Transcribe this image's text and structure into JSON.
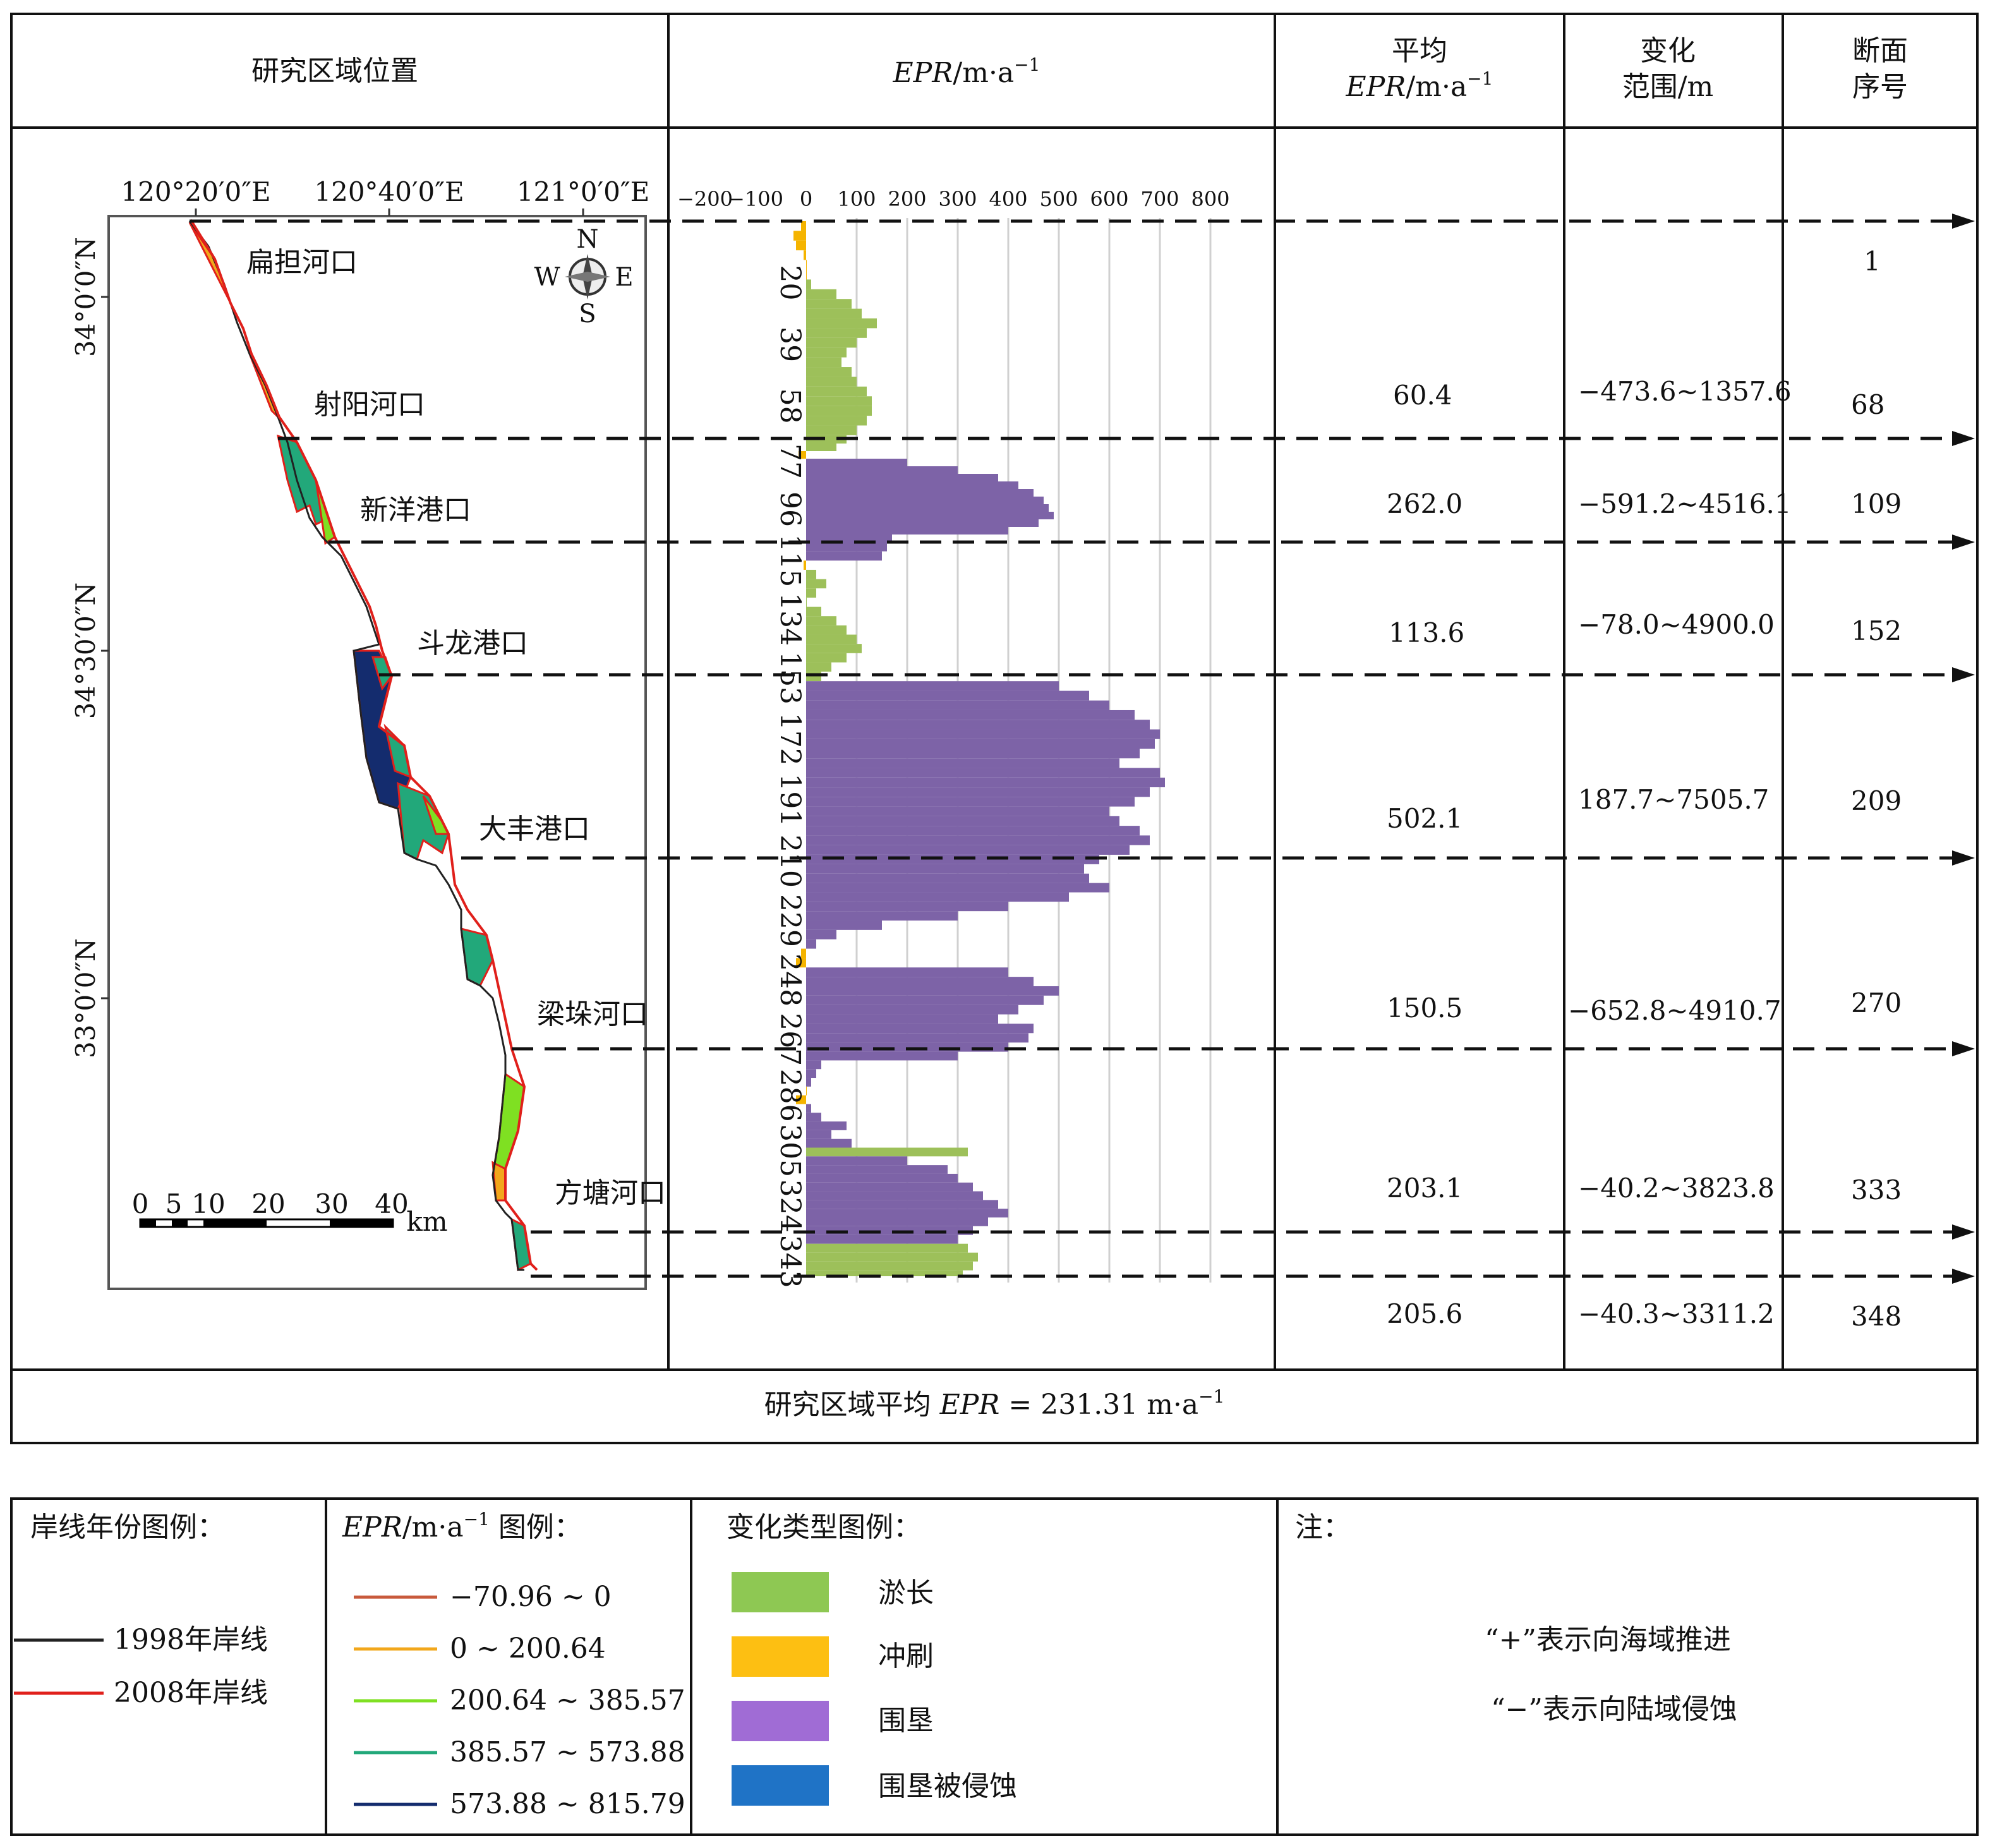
{
  "header": {
    "col1": "研究区域位置",
    "col2_italic": "EPR",
    "col2_unit": "/m·a",
    "col2_sup": "−1",
    "col3_line1": "平均",
    "col3_italic": "EPR",
    "col3_unit": "/m·a",
    "col3_sup": "−1",
    "col4_line1": "变化",
    "col4_line2": "范围/m",
    "col5_line1": "断面",
    "col5_line2": "序号"
  },
  "map": {
    "lon_labels": [
      "120°20′0″E",
      "120°40′0″E",
      "121°0′0″E"
    ],
    "lat_labels": [
      "34°0′0″N",
      "34°30′0″N",
      "33°0′0″N"
    ],
    "compass": {
      "n": "N",
      "s": "S",
      "w": "W",
      "e": "E"
    },
    "estuaries": [
      "扁担河口",
      "射阳河口",
      "新洋港口",
      "斗龙港口",
      "大丰港口",
      "梁垛河口",
      "方塘河口"
    ],
    "scale_numbers": [
      "0",
      "5",
      "10",
      "20",
      "30",
      "40"
    ],
    "scale_unit": "km"
  },
  "segments": [
    {
      "mean": "",
      "range": "",
      "section": "1"
    },
    {
      "mean": "60.4",
      "range": "−473.6~1357.6",
      "section": "68"
    },
    {
      "mean": "262.0",
      "range": "−591.2~4516.1",
      "section": "109"
    },
    {
      "mean": "113.6",
      "range": "−78.0~4900.0",
      "section": "152"
    },
    {
      "mean": "502.1",
      "range": "187.7~7505.7",
      "section": "209"
    },
    {
      "mean": "150.5",
      "range": "−652.8~4910.7",
      "section": "270"
    },
    {
      "mean": "203.1",
      "range": "−40.2~3823.8",
      "section": "333"
    },
    {
      "mean": "205.6",
      "range": "−40.3~3311.2",
      "section": "348"
    }
  ],
  "footer": {
    "prefix": "研究区域平均 ",
    "italic": "EPR",
    "value": " = 231.31 m·a",
    "sup": "−1"
  },
  "legend": {
    "shoreline_title": "岸线年份图例：",
    "shorelines": [
      {
        "label": "1998年岸线",
        "color": "#222222"
      },
      {
        "label": "2008年岸线",
        "color": "#e0201b"
      }
    ],
    "epr_title_italic": "EPR",
    "epr_title_rest": "/m·a",
    "epr_title_sup": "−1",
    "epr_title_tail": " 图例：",
    "epr_classes": [
      {
        "label": "−70.96 ~ 0",
        "color": "#c85a3c"
      },
      {
        "label": "0 ~ 200.64",
        "color": "#f2a71b"
      },
      {
        "label": "200.64 ~ 385.57",
        "color": "#7fe022"
      },
      {
        "label": "385.57 ~ 573.88",
        "color": "#22a87a"
      },
      {
        "label": "573.88 ~ 815.79",
        "color": "#142c6e"
      }
    ],
    "type_title": "变化类型图例：",
    "types": [
      {
        "label": "淤长",
        "color": "#8ec853"
      },
      {
        "label": "冲刷",
        "color": "#fdbf12"
      },
      {
        "label": "围垦",
        "color": "#a06cd5"
      },
      {
        "label": "围垦被侵蚀",
        "color": "#1f73c6"
      }
    ],
    "note_title": "注：",
    "notes": [
      "“+”表示向海域推进",
      "“−”表示向陆域侵蚀"
    ]
  },
  "chart_data": {
    "type": [
      "冲刷",
      "冲刷",
      "冲刷",
      "冲刷",
      "冲刷",
      "冲刷",
      "淤长",
      "淤长",
      "淤长",
      "淤长",
      "淤长",
      "淤长",
      "淤长",
      "淤长",
      "淤长",
      "淤长",
      "淤长",
      "淤长",
      "淤长",
      "淤长",
      "淤长",
      "淤长",
      "淤长",
      "淤长",
      "冲刷",
      "围垦",
      "围垦",
      "围垦",
      "围垦",
      "围垦",
      "围垦",
      "围垦",
      "围垦",
      "围垦",
      "围垦",
      "围垦",
      "围垦",
      "围垦",
      "冲刷",
      "淤长",
      "淤长",
      "淤长",
      "淤长",
      "淤长",
      "淤长",
      "淤长",
      "淤长",
      "淤长",
      "淤长",
      "淤长",
      "淤长",
      "围垦",
      "围垦",
      "围垦",
      "围垦",
      "围垦",
      "围垦",
      "围垦",
      "围垦",
      "围垦",
      "围垦",
      "围垦",
      "围垦",
      "围垦",
      "围垦",
      "围垦",
      "围垦",
      "围垦",
      "围垦",
      "围垦",
      "围垦",
      "围垦",
      "围垦",
      "围垦",
      "围垦",
      "围垦",
      "围垦",
      "围垦",
      "围垦",
      "冲刷",
      "冲刷",
      "围垦",
      "围垦",
      "围垦",
      "围垦",
      "围垦",
      "围垦",
      "围垦",
      "围垦",
      "围垦",
      "围垦",
      "围垦",
      "围垦",
      "围垦",
      "冲刷",
      "冲刷",
      "围垦",
      "围垦",
      "围垦",
      "围垦",
      "围垦",
      "淤长",
      "围垦",
      "围垦",
      "围垦",
      "围垦",
      "围垦",
      "围垦",
      "围垦",
      "围垦",
      "围垦",
      "围垦",
      "淤长",
      "淤长",
      "淤长",
      "淤长"
    ],
    "orientation": "horizontal",
    "x_ticks": [
      "−200",
      "−100",
      "0",
      "100",
      "200",
      "300",
      "400",
      "500",
      "600",
      "700",
      "800"
    ],
    "xlim": [
      -200,
      800
    ],
    "y_ticks": [
      "20",
      "39",
      "58",
      "77",
      "96",
      "115",
      "134",
      "153",
      "172",
      "191",
      "210",
      "229",
      "248",
      "267",
      "286",
      "305",
      "324",
      "343"
    ],
    "ylim": [
      1,
      348
    ],
    "section": [
      1,
      4,
      7,
      10,
      13,
      16,
      19,
      22,
      25,
      28,
      31,
      34,
      37,
      40,
      43,
      46,
      49,
      52,
      55,
      58,
      61,
      64,
      67,
      70,
      73,
      76,
      79,
      82,
      85,
      88,
      91,
      94,
      97,
      100,
      103,
      106,
      109,
      112,
      115,
      118,
      121,
      124,
      127,
      130,
      133,
      136,
      139,
      142,
      145,
      148,
      151,
      154,
      157,
      160,
      163,
      166,
      169,
      172,
      175,
      178,
      181,
      184,
      187,
      190,
      193,
      196,
      199,
      202,
      205,
      208,
      211,
      214,
      217,
      220,
      223,
      226,
      229,
      232,
      235,
      238,
      241,
      244,
      247,
      250,
      253,
      256,
      259,
      262,
      265,
      268,
      271,
      274,
      277,
      280,
      283,
      286,
      289,
      292,
      295,
      298,
      301,
      304,
      307,
      310,
      313,
      316,
      319,
      322,
      325,
      328,
      331,
      334,
      337,
      340,
      343,
      346
    ],
    "epr": [
      -10,
      -25,
      -20,
      -5,
      0,
      0,
      10,
      60,
      90,
      110,
      140,
      120,
      100,
      80,
      70,
      90,
      100,
      120,
      130,
      130,
      120,
      100,
      80,
      60,
      -15,
      200,
      300,
      380,
      420,
      450,
      470,
      480,
      490,
      460,
      400,
      170,
      160,
      150,
      -5,
      20,
      40,
      20,
      0,
      30,
      60,
      80,
      100,
      110,
      80,
      50,
      30,
      500,
      560,
      600,
      650,
      680,
      700,
      690,
      660,
      620,
      700,
      710,
      680,
      650,
      600,
      620,
      660,
      680,
      640,
      580,
      550,
      560,
      600,
      520,
      400,
      300,
      150,
      60,
      20,
      -10,
      -20,
      400,
      450,
      500,
      470,
      420,
      380,
      450,
      440,
      400,
      300,
      30,
      20,
      10,
      0,
      -20,
      10,
      30,
      80,
      50,
      90,
      320,
      200,
      280,
      300,
      330,
      350,
      380,
      400,
      360,
      330,
      300,
      320,
      340,
      330,
      310
    ],
    "type_colors": {
      "淤长": "#9dc05a",
      "冲刷": "#f5b400",
      "围垦": "#7d63a7"
    },
    "boundary_sections": [
      1,
      68,
      109,
      152,
      209,
      270,
      333,
      348
    ]
  }
}
